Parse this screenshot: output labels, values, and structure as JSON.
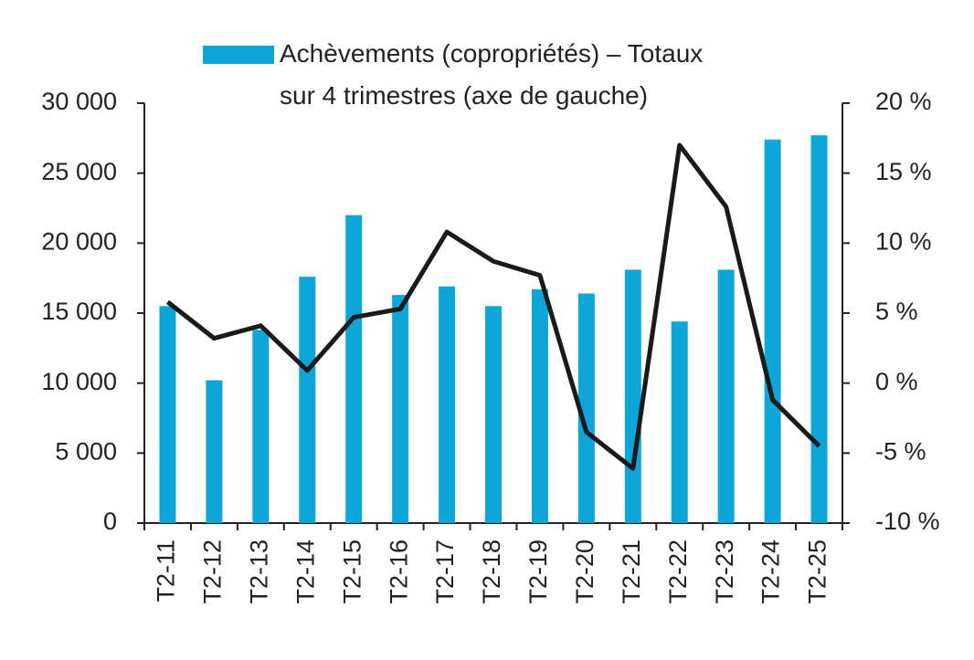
{
  "chart_data": {
    "type": "bar-line",
    "categories": [
      "T2-11",
      "T2-12",
      "T2-13",
      "T2-14",
      "T2-15",
      "T2-16",
      "T2-17",
      "T2-18",
      "T2-19",
      "T2-20",
      "T2-21",
      "T2-22",
      "T2-23",
      "T2-24",
      "T2-25"
    ],
    "series": [
      {
        "name": "Achèvements (copropriétés) – Totaux sur 4 trimestres (axe de gauche)",
        "type": "bar",
        "color": "#0ea5db",
        "values": [
          15500,
          10200,
          13800,
          17600,
          22000,
          16300,
          16900,
          15500,
          16700,
          16400,
          18100,
          14400,
          18100,
          27400,
          27700
        ]
      },
      {
        "type": "line",
        "axis": "y2",
        "color": "#1a1a1a",
        "values": [
          5.8,
          3.2,
          4.1,
          0.9,
          4.7,
          5.3,
          10.8,
          8.7,
          7.7,
          -3.5,
          -6.1,
          17.0,
          12.6,
          -1.2,
          -4.5
        ]
      }
    ],
    "ylim": [
      0,
      30000
    ],
    "yticks": [
      {
        "value": 0,
        "label": "0"
      },
      {
        "value": 5000,
        "label": "5 000"
      },
      {
        "value": 10000,
        "label": "10 000"
      },
      {
        "value": 15000,
        "label": "15 000"
      },
      {
        "value": 20000,
        "label": "20 000"
      },
      {
        "value": 25000,
        "label": "25 000"
      },
      {
        "value": 30000,
        "label": "30 000"
      }
    ],
    "y2lim": [
      -10,
      20
    ],
    "y2ticks": [
      {
        "value": -10,
        "label": "-10 %"
      },
      {
        "value": -5,
        "label": "-5 %"
      },
      {
        "value": 0,
        "label": "0 %"
      },
      {
        "value": 5,
        "label": "5 %"
      },
      {
        "value": 10,
        "label": "10 %"
      },
      {
        "value": 15,
        "label": "15 %"
      },
      {
        "value": 20,
        "label": "20 %"
      }
    ],
    "legend": "top"
  }
}
